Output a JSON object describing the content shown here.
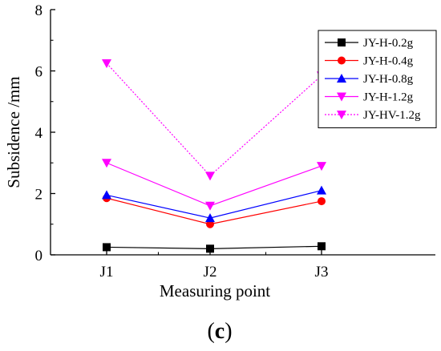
{
  "panel_label": {
    "open": "(",
    "letter": "c",
    "close": ")"
  },
  "chart_data": {
    "type": "line",
    "title": "",
    "xlabel": "Measuring point",
    "ylabel": "Subsidence /mm",
    "categories": [
      "J1",
      "J2",
      "J3"
    ],
    "ylim": [
      0,
      8
    ],
    "yticks": [
      0,
      2,
      4,
      6,
      8
    ],
    "grid": false,
    "legend_position": "top-right",
    "series": [
      {
        "name": "JY-H-0.2g",
        "values": [
          0.25,
          0.2,
          0.28
        ],
        "color": "#000000",
        "marker": "square",
        "line": "solid"
      },
      {
        "name": "JY-H-0.4g",
        "values": [
          1.85,
          1.0,
          1.75
        ],
        "color": "#ff0000",
        "marker": "circle",
        "line": "solid"
      },
      {
        "name": "JY-H-0.8g",
        "values": [
          1.95,
          1.2,
          2.1
        ],
        "color": "#0000ff",
        "marker": "triangle-up",
        "line": "solid"
      },
      {
        "name": "JY-H-1.2g",
        "values": [
          3.0,
          1.6,
          2.9
        ],
        "color": "#ff00ff",
        "marker": "triangle-down",
        "line": "solid"
      },
      {
        "name": "JY-HV-1.2g",
        "values": [
          6.25,
          2.58,
          5.85
        ],
        "color": "#ff00ff",
        "marker": "triangle-down",
        "line": "dotted"
      }
    ]
  }
}
